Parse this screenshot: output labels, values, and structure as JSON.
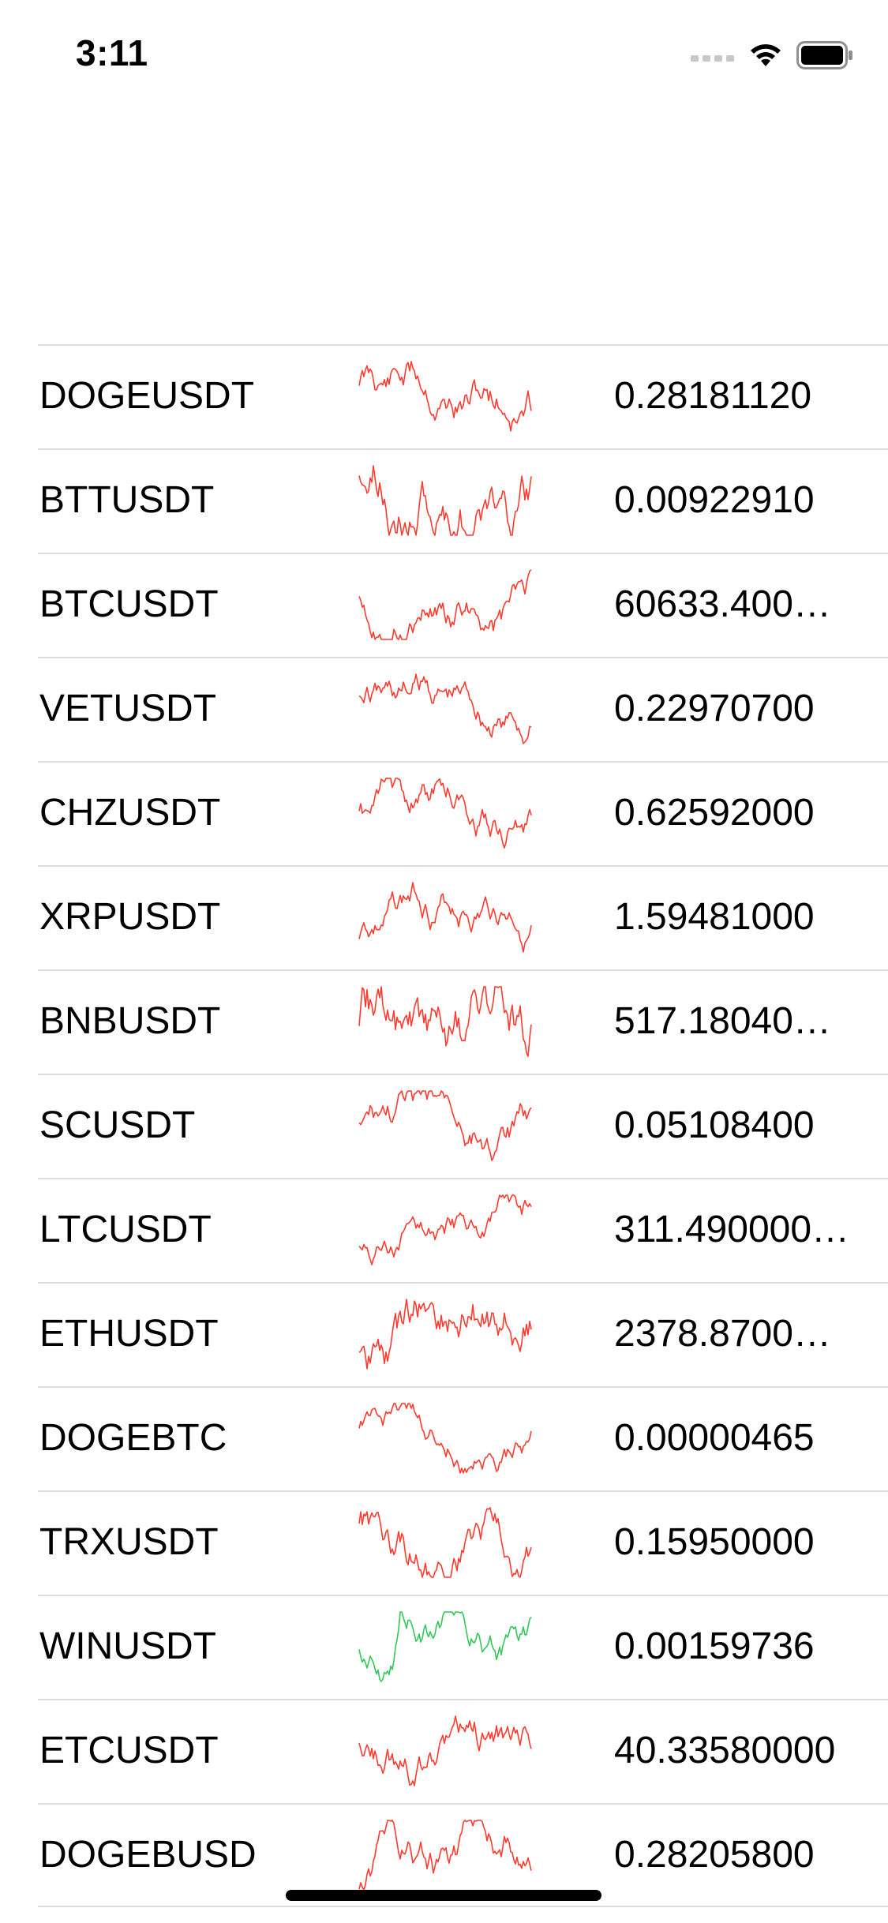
{
  "status_bar": {
    "time": "3:11",
    "icons": [
      "cellular-signal-icon",
      "wifi-icon",
      "battery-icon"
    ]
  },
  "colors": {
    "down": "#ff3b30",
    "up": "#34c759",
    "separator": "#dcdcdc"
  },
  "tickers": [
    {
      "symbol": "DOGEUSDT",
      "price": "0.28181120",
      "trend": "down",
      "seed": 11
    },
    {
      "symbol": "BTTUSDT",
      "price": "0.00922910",
      "trend": "down",
      "seed": 23
    },
    {
      "symbol": "BTCUSDT",
      "price": "60633.40000000",
      "trend": "down",
      "seed": 37
    },
    {
      "symbol": "VETUSDT",
      "price": "0.22970700",
      "trend": "down",
      "seed": 41
    },
    {
      "symbol": "CHZUSDT",
      "price": "0.62592000",
      "trend": "down",
      "seed": 53
    },
    {
      "symbol": "XRPUSDT",
      "price": "1.59481000",
      "trend": "down",
      "seed": 67
    },
    {
      "symbol": "BNBUSDT",
      "price": "517.18040000",
      "trend": "down",
      "seed": 71
    },
    {
      "symbol": "SCUSDT",
      "price": "0.05108400",
      "trend": "down",
      "seed": 83
    },
    {
      "symbol": "LTCUSDT",
      "price": "311.49000000",
      "trend": "down",
      "seed": 97
    },
    {
      "symbol": "ETHUSDT",
      "price": "2378.87000000",
      "trend": "down",
      "seed": 101
    },
    {
      "symbol": "DOGEBTC",
      "price": "0.00000465",
      "trend": "down",
      "seed": 113
    },
    {
      "symbol": "TRXUSDT",
      "price": "0.15950000",
      "trend": "down",
      "seed": 127
    },
    {
      "symbol": "WINUSDT",
      "price": "0.00159736",
      "trend": "up",
      "seed": 131
    },
    {
      "symbol": "ETCUSDT",
      "price": "40.33580000",
      "trend": "down",
      "seed": 149
    },
    {
      "symbol": "DOGEBUSD",
      "price": "0.28205800",
      "trend": "down",
      "seed": 151
    }
  ]
}
